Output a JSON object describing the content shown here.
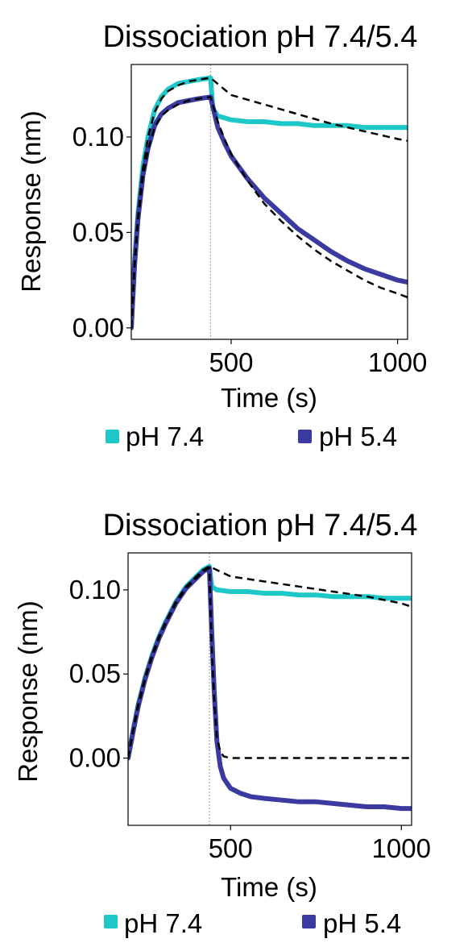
{
  "colors": {
    "ph74": "#1ec8c8",
    "ph54": "#3a3aa0",
    "fit": "#000000",
    "vline": "#9a9a9a"
  },
  "chart_data": [
    {
      "type": "line",
      "title": "Dissociation pH 7.4/5.4",
      "xlabel": "Time (s)",
      "ylabel": "Response (nm)",
      "xlim": [
        200,
        1030
      ],
      "ylim": [
        -0.006,
        0.138
      ],
      "xticks": [
        500,
        1000
      ],
      "xtick_labels": [
        "500",
        "1000"
      ],
      "yticks": [
        0.0,
        0.05,
        0.1
      ],
      "ytick_labels": [
        "0.00",
        "0.05",
        "0.10"
      ],
      "grid": false,
      "legend": "bottom",
      "vline_x": 438,
      "series": [
        {
          "name": "pH 7.4",
          "color_key": "ph74",
          "role": "data",
          "x": [
            200,
            210,
            220,
            235,
            250,
            270,
            290,
            310,
            340,
            370,
            400,
            438,
            445,
            460,
            480,
            500,
            550,
            600,
            650,
            700,
            750,
            800,
            850,
            900,
            950,
            1000,
            1030
          ],
          "y": [
            0.0,
            0.035,
            0.06,
            0.085,
            0.1,
            0.114,
            0.121,
            0.125,
            0.128,
            0.129,
            0.13,
            0.131,
            0.115,
            0.111,
            0.11,
            0.109,
            0.108,
            0.108,
            0.107,
            0.107,
            0.106,
            0.106,
            0.106,
            0.105,
            0.105,
            0.105,
            0.105
          ]
        },
        {
          "name": "pH 5.4",
          "color_key": "ph54",
          "role": "data",
          "x": [
            200,
            210,
            220,
            235,
            250,
            270,
            290,
            310,
            340,
            370,
            400,
            438,
            460,
            480,
            500,
            550,
            600,
            650,
            700,
            750,
            800,
            850,
            900,
            950,
            1000,
            1030
          ],
          "y": [
            0.0,
            0.033,
            0.057,
            0.08,
            0.094,
            0.106,
            0.112,
            0.115,
            0.118,
            0.119,
            0.12,
            0.121,
            0.105,
            0.097,
            0.09,
            0.078,
            0.068,
            0.06,
            0.052,
            0.046,
            0.04,
            0.035,
            0.031,
            0.028,
            0.025,
            0.024
          ]
        },
        {
          "color_key": "fit",
          "role": "fit",
          "x": [
            200,
            210,
            220,
            235,
            250,
            270,
            290,
            310,
            340,
            370,
            400,
            438,
            500,
            600,
            700,
            800,
            900,
            1000,
            1030
          ],
          "y": [
            0.0,
            0.034,
            0.058,
            0.084,
            0.1,
            0.113,
            0.12,
            0.124,
            0.127,
            0.129,
            0.13,
            0.131,
            0.122,
            0.117,
            0.112,
            0.107,
            0.103,
            0.099,
            0.098
          ]
        },
        {
          "color_key": "fit",
          "role": "fit",
          "x": [
            200,
            210,
            220,
            235,
            250,
            270,
            290,
            310,
            340,
            370,
            400,
            438,
            460,
            480,
            500,
            550,
            600,
            650,
            700,
            750,
            800,
            850,
            900,
            950,
            1000,
            1030
          ],
          "y": [
            0.0,
            0.032,
            0.056,
            0.079,
            0.093,
            0.105,
            0.111,
            0.114,
            0.117,
            0.119,
            0.12,
            0.121,
            0.108,
            0.099,
            0.091,
            0.077,
            0.065,
            0.056,
            0.048,
            0.041,
            0.035,
            0.03,
            0.025,
            0.021,
            0.018,
            0.016
          ]
        }
      ]
    },
    {
      "type": "line",
      "title": "Dissociation pH 7.4/5.4",
      "xlabel": "Time (s)",
      "ylabel": "Response (nm)",
      "xlim": [
        200,
        1030
      ],
      "ylim": [
        -0.04,
        0.122
      ],
      "xticks": [
        500,
        1000
      ],
      "xtick_labels": [
        "500",
        "1000"
      ],
      "yticks": [
        0.0,
        0.05,
        0.1
      ],
      "ytick_labels": [
        "0.00",
        "0.05",
        "0.10"
      ],
      "grid": false,
      "legend": "bottom",
      "vline_x": 438,
      "series": [
        {
          "name": "pH 7.4",
          "color_key": "ph74",
          "role": "data",
          "x": [
            200,
            215,
            230,
            250,
            270,
            290,
            310,
            340,
            370,
            400,
            420,
            438,
            445,
            460,
            500,
            550,
            600,
            650,
            700,
            750,
            800,
            850,
            900,
            950,
            1000,
            1030
          ],
          "y": [
            0.0,
            0.017,
            0.032,
            0.048,
            0.061,
            0.072,
            0.081,
            0.093,
            0.102,
            0.108,
            0.112,
            0.114,
            0.102,
            0.1,
            0.099,
            0.099,
            0.098,
            0.098,
            0.097,
            0.097,
            0.096,
            0.096,
            0.096,
            0.095,
            0.095,
            0.095
          ]
        },
        {
          "name": "pH 5.4",
          "color_key": "ph54",
          "role": "data",
          "x": [
            200,
            215,
            230,
            250,
            270,
            290,
            310,
            340,
            370,
            400,
            420,
            438,
            445,
            452,
            460,
            470,
            480,
            500,
            530,
            560,
            600,
            650,
            700,
            750,
            800,
            850,
            900,
            950,
            1000,
            1030
          ],
          "y": [
            0.0,
            0.016,
            0.031,
            0.047,
            0.06,
            0.071,
            0.08,
            0.092,
            0.101,
            0.107,
            0.111,
            0.113,
            0.075,
            0.04,
            0.01,
            -0.005,
            -0.012,
            -0.018,
            -0.021,
            -0.023,
            -0.024,
            -0.025,
            -0.026,
            -0.026,
            -0.027,
            -0.028,
            -0.029,
            -0.029,
            -0.03,
            -0.03
          ]
        },
        {
          "color_key": "fit",
          "role": "fit",
          "x": [
            200,
            215,
            230,
            250,
            270,
            290,
            310,
            340,
            370,
            400,
            420,
            438,
            500,
            600,
            700,
            800,
            900,
            1000,
            1030
          ],
          "y": [
            0.0,
            0.017,
            0.032,
            0.048,
            0.061,
            0.072,
            0.081,
            0.093,
            0.102,
            0.108,
            0.112,
            0.114,
            0.108,
            0.105,
            0.102,
            0.099,
            0.096,
            0.092,
            0.09
          ]
        },
        {
          "color_key": "fit",
          "role": "fit",
          "x": [
            200,
            215,
            230,
            250,
            270,
            290,
            310,
            340,
            370,
            400,
            420,
            438,
            445,
            452,
            460,
            470,
            480,
            500,
            600,
            700,
            800,
            900,
            1000,
            1030
          ],
          "y": [
            0.0,
            0.016,
            0.031,
            0.047,
            0.06,
            0.071,
            0.08,
            0.092,
            0.101,
            0.107,
            0.111,
            0.113,
            0.065,
            0.035,
            0.012,
            0.004,
            0.001,
            0.0,
            0.0,
            0.0,
            0.0,
            0.0,
            0.0,
            0.0
          ]
        }
      ]
    }
  ]
}
